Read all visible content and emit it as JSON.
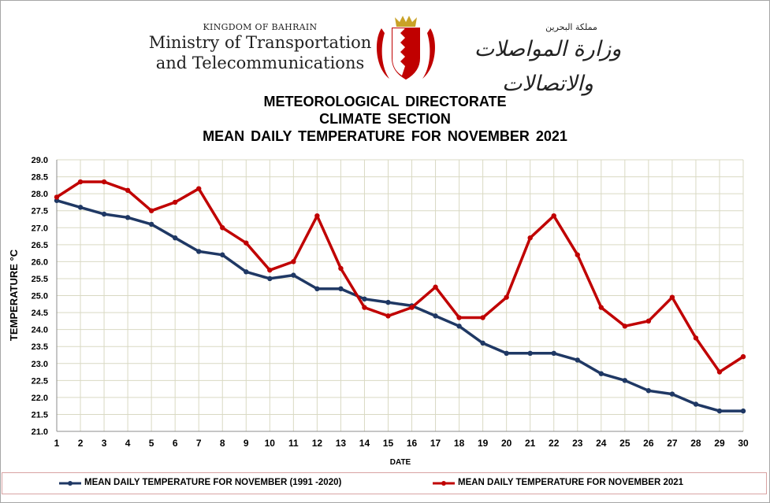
{
  "header": {
    "kingdom": "KINGDOM OF BAHRAIN",
    "ministry_line1": "Ministry of Transportation",
    "ministry_line2": "and Telecommunications",
    "kingdom_ar": "مملكة البحرين",
    "ministry_ar": "وزارة المواصلات والاتصالات"
  },
  "titles": {
    "line1": "METEOROLOGICAL DIRECTORATE",
    "line2": "CLIMATE SECTION",
    "line3": "MEAN DAILY TEMPERATURE FOR NOVEMBER 2021"
  },
  "colors": {
    "normal_series": "#1f3864",
    "current_series": "#c00000",
    "grid": "#d9d9c3"
  },
  "chart_data": {
    "type": "line",
    "title": "MEAN DAILY TEMPERATURE FOR NOVEMBER 2021",
    "xlabel": "DATE",
    "ylabel": "TEMPERATURE °C",
    "x": [
      1,
      2,
      3,
      4,
      5,
      6,
      7,
      8,
      9,
      10,
      11,
      12,
      13,
      14,
      15,
      16,
      17,
      18,
      19,
      20,
      21,
      22,
      23,
      24,
      25,
      26,
      27,
      28,
      29,
      30
    ],
    "ylim": [
      21.0,
      29.0
    ],
    "yticks": [
      "21.0",
      "21.5",
      "22.0",
      "22.5",
      "23.0",
      "23.5",
      "24.0",
      "24.5",
      "25.0",
      "25.5",
      "26.0",
      "26.5",
      "27.0",
      "27.5",
      "28.0",
      "28.5",
      "29.0"
    ],
    "grid": true,
    "legend_position": "bottom",
    "series": [
      {
        "name": "MEAN DAILY TEMPERATURE FOR NOVEMBER (1991 -2020)",
        "color": "#1f3864",
        "values": [
          27.8,
          27.6,
          27.4,
          27.3,
          27.1,
          26.7,
          26.3,
          26.2,
          25.7,
          25.5,
          25.6,
          25.2,
          25.2,
          24.9,
          24.8,
          24.7,
          24.4,
          24.1,
          23.6,
          23.3,
          23.3,
          23.3,
          23.1,
          22.7,
          22.5,
          22.2,
          22.1,
          21.8,
          21.6,
          21.6
        ]
      },
      {
        "name": "MEAN DAILY TEMPERATURE FOR NOVEMBER 2021",
        "color": "#c00000",
        "values": [
          27.9,
          28.35,
          28.35,
          28.1,
          27.5,
          27.75,
          28.15,
          27.0,
          26.55,
          25.75,
          26.0,
          27.35,
          25.8,
          24.65,
          24.4,
          24.65,
          25.25,
          24.35,
          24.35,
          24.95,
          26.7,
          27.35,
          26.2,
          24.65,
          24.1,
          24.25,
          24.95,
          23.75,
          22.75,
          23.2
        ]
      }
    ]
  }
}
